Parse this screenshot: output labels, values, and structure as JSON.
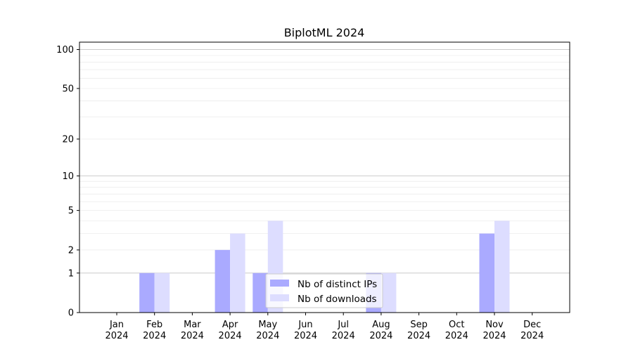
{
  "chart_data": {
    "type": "bar",
    "title": "BiplotML 2024",
    "xlabel": "",
    "ylabel": "",
    "y_scale": "log(1+y)",
    "ylim": [
      0,
      114
    ],
    "yticks": [
      0,
      1,
      2,
      5,
      10,
      20,
      50,
      100
    ],
    "grid": true,
    "legend_position": "lower-center",
    "categories": [
      {
        "month": "Jan",
        "year": "2024"
      },
      {
        "month": "Feb",
        "year": "2024"
      },
      {
        "month": "Mar",
        "year": "2024"
      },
      {
        "month": "Apr",
        "year": "2024"
      },
      {
        "month": "May",
        "year": "2024"
      },
      {
        "month": "Jun",
        "year": "2024"
      },
      {
        "month": "Jul",
        "year": "2024"
      },
      {
        "month": "Aug",
        "year": "2024"
      },
      {
        "month": "Sep",
        "year": "2024"
      },
      {
        "month": "Oct",
        "year": "2024"
      },
      {
        "month": "Nov",
        "year": "2024"
      },
      {
        "month": "Dec",
        "year": "2024"
      }
    ],
    "series": [
      {
        "name": "Nb of distinct IPs",
        "color": "#aaaaff",
        "values": [
          0,
          1,
          0,
          2,
          1,
          0,
          0,
          1,
          0,
          0,
          3,
          0
        ]
      },
      {
        "name": "Nb of downloads",
        "color": "#ddddff",
        "values": [
          0,
          1,
          0,
          3,
          4,
          0,
          0,
          1,
          0,
          0,
          4,
          0
        ]
      }
    ]
  }
}
